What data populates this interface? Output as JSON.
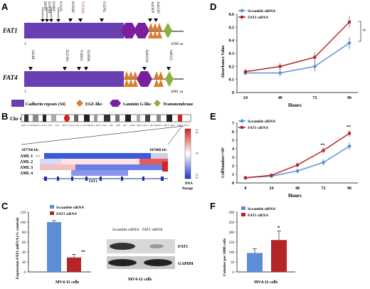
{
  "panels": {
    "A": "A",
    "B": "B",
    "C": "C",
    "D": "D",
    "E": "E",
    "F": "F"
  },
  "panelA": {
    "fat1": {
      "gene": "FAT1",
      "start": "1",
      "end": "4588 aa",
      "mutations_above": [
        "I993N",
        "I1093M",
        "I1099F",
        "I1310L",
        "R1958T",
        "V2529X",
        "F3478L",
        "A4190T",
        "A4214V"
      ]
    },
    "fat4": {
      "gene": "FAT4",
      "start": "1",
      "end": "4981 aa",
      "mutations_above": [
        "S424R",
        "R2239G",
        "V2891I",
        "I3206M",
        "R4022W",
        "S4631L"
      ]
    },
    "legend": {
      "cadherin": "Cadherin repeats (34)",
      "egf": "EGF-like",
      "laminin": "Laminin G-like",
      "transmembrane": "Transmembrane"
    },
    "colors": {
      "cadherin": "#6a3fb2",
      "egf": "#e07a2a",
      "laminin": "#7a1f9e",
      "transmembrane": "#8fae3f",
      "highlight": "#cc2222"
    }
  },
  "panelB": {
    "chr": "Chr 4",
    "bands": [
      "p16.1",
      "p15.33",
      "p15.2",
      "p15.1",
      "p14",
      "q12",
      "q13.1",
      "q13.3",
      "q21.1",
      "q21.23",
      "q22.1",
      "q22.3",
      "q24",
      "q25",
      "q26",
      "q27",
      "q28.1",
      "q28.3",
      "q31.1",
      "q31.22",
      "q32.1",
      "q32.3",
      "q33",
      "q34.3",
      "q35.1"
    ],
    "left_kb": "187760 kb",
    "right_kb": "187880 kb",
    "rows": [
      "AML 1",
      "AML 2",
      "AML 3",
      "AML 4"
    ],
    "gene": "FAT1",
    "scale_top": "1.5",
    "scale_mid": "0",
    "scale_bot": "-1.5",
    "dna": "DNA",
    "dosage": "Dosage"
  },
  "panelC": {
    "legend": [
      "Scramble siRNA",
      "FAT1 siRNA"
    ],
    "ylabel": "Expression FAT1 mRNA (% control)",
    "yticks": [
      "0",
      "20",
      "40",
      "60",
      "80",
      "100",
      "120"
    ],
    "xlabel": "MV4-11 cells",
    "star": "**",
    "blot_cols": [
      "Scramble siRNA",
      "FAT1 siRNA"
    ],
    "blot_labels": [
      "FAT1",
      "GAPDH"
    ],
    "blot_xlabel": "MV4-11 cells"
  },
  "chart_data": [
    {
      "type": "bar",
      "id": "C",
      "categories": [
        "MV4-11 cells"
      ],
      "series": [
        {
          "name": "Scramble siRNA",
          "values": [
            100
          ]
        },
        {
          "name": "FAT1 siRNA",
          "values": [
            29
          ]
        }
      ],
      "ylabel": "Expression FAT1 mRNA (% control)",
      "ylim": [
        0,
        120
      ]
    },
    {
      "type": "line",
      "id": "D",
      "x": [
        24,
        48,
        72,
        96
      ],
      "series": [
        {
          "name": "Scramble siRNA",
          "values": [
            0.15,
            0.15,
            0.2,
            0.38
          ]
        },
        {
          "name": "FAT1 siRNA",
          "values": [
            0.16,
            0.2,
            0.27,
            0.54
          ]
        }
      ],
      "xlabel": "Hours",
      "ylabel": "Absorbance Value",
      "ylim": [
        0,
        0.6
      ]
    },
    {
      "type": "line",
      "id": "E",
      "x": [
        0,
        24,
        48,
        72,
        96
      ],
      "series": [
        {
          "name": "Scramble siRNA",
          "values": [
            0.6,
            0.8,
            1.4,
            2.4,
            4.3
          ]
        },
        {
          "name": "FAT1 siRNA",
          "values": [
            0.6,
            0.9,
            2.1,
            3.8,
            5.8
          ]
        }
      ],
      "xlabel": "Hours",
      "ylabel": "CellNumber×10⁵",
      "ylim": [
        0,
        7
      ]
    },
    {
      "type": "bar",
      "id": "F",
      "categories": [
        "MV4-11 cells"
      ],
      "series": [
        {
          "name": "Scramble siRNA",
          "values": [
            95
          ]
        },
        {
          "name": "FAT1 siRNA",
          "values": [
            160
          ]
        }
      ],
      "ylabel": "Colonies per 1000 cells",
      "ylim": [
        0,
        300
      ]
    }
  ],
  "panelD": {
    "yticks": [
      "0",
      "0.1",
      "0.2",
      "0.3",
      "0.4",
      "0.5",
      "0.6"
    ],
    "xticks": [
      "24",
      "48",
      "72",
      "96"
    ],
    "xlabel": "Hours",
    "ylabel": "Absorbance Value",
    "legend": [
      "Scramble siRNA",
      "FAT1 siRNA"
    ],
    "star": "*"
  },
  "panelE": {
    "yticks": [
      "0",
      "1",
      "2",
      "3",
      "4",
      "5",
      "6",
      "7"
    ],
    "xticks": [
      "0",
      "24",
      "48",
      "72",
      "96"
    ],
    "xlabel": "Hours",
    "ylabel": "CellNumber×10⁵",
    "legend": [
      "Scramble siRNA",
      "FAT1 siRNA"
    ],
    "star72": "**",
    "star96": "**"
  },
  "panelF": {
    "yticks": [
      "0",
      "50",
      "100",
      "150",
      "200",
      "250",
      "300"
    ],
    "xlabel": "MV4-11 cells",
    "ylabel": "Colonies per 1000 cells",
    "legend": [
      "Scramble siRNA",
      "FAT1 siRNA"
    ],
    "star": "*"
  },
  "colors": {
    "blue": "#5b8ed6",
    "red": "#b42525"
  }
}
